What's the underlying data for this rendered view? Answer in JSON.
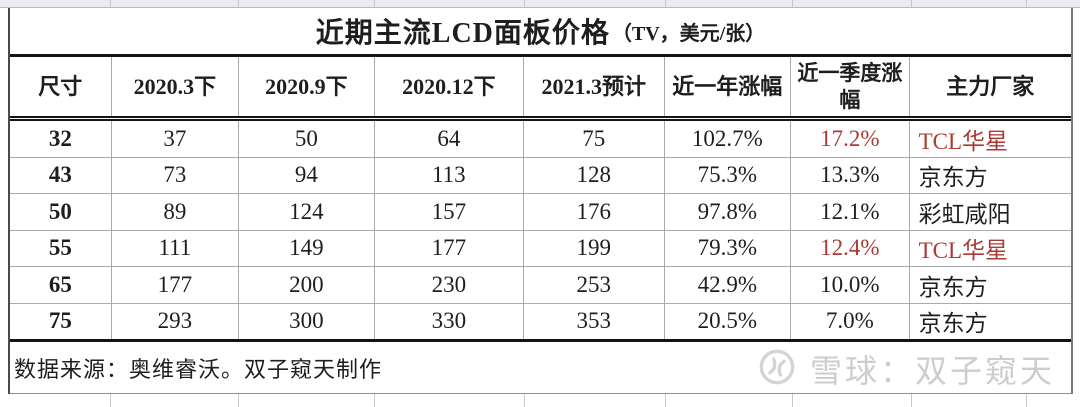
{
  "title": {
    "main": "近期主流LCD面板价格",
    "unit_note": "（TV，美元/张）"
  },
  "chart_data": {
    "type": "table",
    "title": "近期主流LCD面板价格（TV，美元/张）",
    "columns": [
      "尺寸",
      "2020.3下",
      "2020.9下",
      "2020.12下",
      "2021.3预计",
      "近一年涨幅",
      "近一季度涨幅",
      "主力厂家"
    ],
    "rows": [
      [
        "32",
        "37",
        "50",
        "64",
        "75",
        "102.7%",
        "17.2%",
        "TCL华星"
      ],
      [
        "43",
        "73",
        "94",
        "113",
        "128",
        "75.3%",
        "13.3%",
        "京东方"
      ],
      [
        "50",
        "89",
        "124",
        "157",
        "176",
        "97.8%",
        "12.1%",
        "彩虹咸阳"
      ],
      [
        "55",
        "111",
        "149",
        "177",
        "199",
        "79.3%",
        "12.4%",
        "TCL华星"
      ],
      [
        "65",
        "177",
        "200",
        "230",
        "253",
        "42.9%",
        "10.0%",
        "京东方"
      ],
      [
        "75",
        "293",
        "300",
        "330",
        "353",
        "20.5%",
        "7.0%",
        "京东方"
      ]
    ],
    "red_highlight_cells": [
      {
        "row": 0,
        "columns": [
          6,
          7
        ]
      },
      {
        "row": 3,
        "columns": [
          6,
          7
        ]
      }
    ],
    "source_note": "数据来源：奥维睿沃。双子窥天制作"
  },
  "footer": {
    "source_note": "数据来源：奥维睿沃。双子窥天制作"
  },
  "watermark": {
    "logo_icon": "xueqiu-snowball-logo",
    "text": "雪球：双子窥天"
  },
  "colors": {
    "highlight_red": "#ab3a34",
    "text_black": "#1e1e1e",
    "watermark_gray": "#cdcdcd",
    "gridline_gray": "#a9a9a9"
  }
}
